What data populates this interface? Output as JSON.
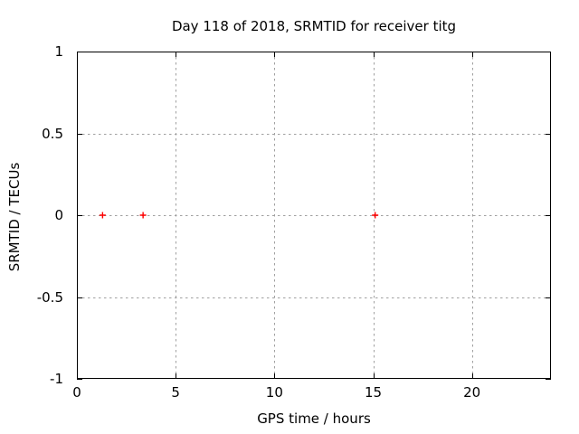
{
  "chart_data": {
    "type": "scatter",
    "title": "Day 118 of 2018, SRMTID for receiver titg",
    "xlabel": "GPS time / hours",
    "ylabel": "SRMTID / TECUs",
    "xlim": [
      0,
      24
    ],
    "ylim": [
      -1,
      1
    ],
    "xticks": [
      {
        "v": 0,
        "label": "0"
      },
      {
        "v": 5,
        "label": "5"
      },
      {
        "v": 10,
        "label": "10"
      },
      {
        "v": 15,
        "label": "15"
      },
      {
        "v": 20,
        "label": "20"
      }
    ],
    "yticks": [
      {
        "v": -1,
        "label": "-1"
      },
      {
        "v": -0.5,
        "label": "-0.5"
      },
      {
        "v": 0,
        "label": "0"
      },
      {
        "v": 0.5,
        "label": "0.5"
      },
      {
        "v": 1,
        "label": "1"
      }
    ],
    "grid": true,
    "legend_position": "none",
    "series": [
      {
        "name": "SRMTID",
        "marker": "plus",
        "color": "#ff0000",
        "points": [
          [
            1.3,
            0
          ],
          [
            3.35,
            0
          ],
          [
            15.1,
            0
          ]
        ]
      }
    ],
    "colors": {
      "background": "#ffffff",
      "border": "#000000",
      "grid": "#a0a0a0",
      "text": "#000000"
    }
  }
}
